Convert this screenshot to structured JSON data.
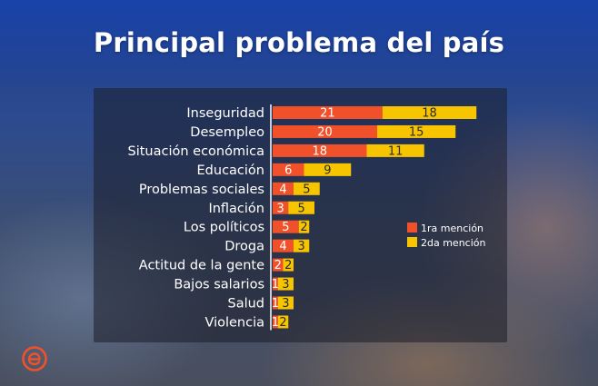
{
  "chart_data": {
    "type": "bar",
    "orientation": "horizontal",
    "stacked": true,
    "title": "Principal problema del país",
    "categories": [
      "Inseguridad",
      "Desempleo",
      "Situación económica",
      "Educación",
      "Problemas sociales",
      "Inflación",
      "Los políticos",
      "Droga",
      "Actitud de la gente",
      "Bajos salarios",
      "Salud",
      "Violencia"
    ],
    "series": [
      {
        "name": "1ra mención",
        "color": "#f0512b",
        "label_color": "#ffffff",
        "values": [
          21,
          20,
          18,
          6,
          4,
          3,
          5,
          4,
          2,
          1,
          1,
          1
        ]
      },
      {
        "name": "2da mención",
        "color": "#f7c500",
        "label_color": "#2b2b2b",
        "values": [
          18,
          15,
          11,
          9,
          5,
          5,
          2,
          3,
          2,
          3,
          3,
          2
        ]
      }
    ],
    "legend_position": "right",
    "grid": false
  },
  "logo": {
    "icon": "e-logo-icon",
    "color": "#f0512b"
  }
}
